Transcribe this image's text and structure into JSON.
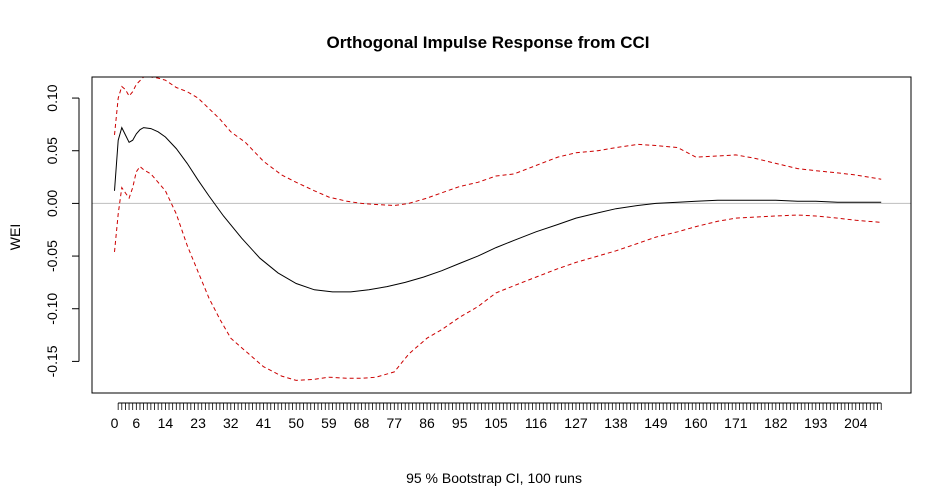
{
  "chart_data": {
    "type": "line",
    "title": "Orthogonal Impulse Response from CCI",
    "xlabel": "95 % Bootstrap CI,  100 runs",
    "ylabel": "WEI",
    "xlim": [
      -6.2,
      219.2
    ],
    "ylim": [
      -0.18,
      0.12
    ],
    "x_tick_labels": [
      "0",
      "6",
      "14",
      "23",
      "32",
      "41",
      "50",
      "59",
      "68",
      "77",
      "86",
      "95",
      "105",
      "116",
      "127",
      "138",
      "149",
      "160",
      "171",
      "182",
      "193",
      "204"
    ],
    "x_tick_values": [
      0,
      6,
      14,
      23,
      32,
      41,
      50,
      59,
      68,
      77,
      86,
      95,
      105,
      116,
      127,
      138,
      149,
      160,
      171,
      182,
      193,
      204
    ],
    "x_minor_ticks": {
      "from": 1,
      "to": 211,
      "step": 1
    },
    "y_ticks": [
      -0.15,
      -0.1,
      -0.05,
      0.0,
      0.05,
      0.1
    ],
    "y_tick_labels": [
      "-0.15",
      "-0.10",
      "-0.05",
      "0.00",
      "0.05",
      "0.10"
    ],
    "zero_line": 0,
    "colors": {
      "response": "#000000",
      "ci": "#cc0000",
      "zero": "#bebebe"
    },
    "series": [
      {
        "role": "response",
        "style": "solid",
        "points": [
          [
            0,
            0.012
          ],
          [
            1,
            0.06
          ],
          [
            2,
            0.072
          ],
          [
            3,
            0.065
          ],
          [
            4,
            0.058
          ],
          [
            5,
            0.06
          ],
          [
            6,
            0.066
          ],
          [
            7,
            0.07
          ],
          [
            8,
            0.072
          ],
          [
            10,
            0.071
          ],
          [
            12,
            0.068
          ],
          [
            14,
            0.063
          ],
          [
            17,
            0.052
          ],
          [
            20,
            0.038
          ],
          [
            23,
            0.022
          ],
          [
            26,
            0.007
          ],
          [
            30,
            -0.012
          ],
          [
            35,
            -0.033
          ],
          [
            40,
            -0.052
          ],
          [
            45,
            -0.066
          ],
          [
            50,
            -0.076
          ],
          [
            55,
            -0.082
          ],
          [
            60,
            -0.084
          ],
          [
            65,
            -0.084
          ],
          [
            70,
            -0.082
          ],
          [
            75,
            -0.079
          ],
          [
            80,
            -0.075
          ],
          [
            85,
            -0.07
          ],
          [
            90,
            -0.064
          ],
          [
            95,
            -0.057
          ],
          [
            100,
            -0.05
          ],
          [
            105,
            -0.042
          ],
          [
            110,
            -0.035
          ],
          [
            116,
            -0.027
          ],
          [
            122,
            -0.02
          ],
          [
            127,
            -0.014
          ],
          [
            133,
            -0.009
          ],
          [
            138,
            -0.005
          ],
          [
            144,
            -0.002
          ],
          [
            149,
            0.0
          ],
          [
            155,
            0.001
          ],
          [
            160,
            0.002
          ],
          [
            166,
            0.003
          ],
          [
            171,
            0.003
          ],
          [
            176,
            0.003
          ],
          [
            182,
            0.003
          ],
          [
            188,
            0.002
          ],
          [
            193,
            0.002
          ],
          [
            199,
            0.001
          ],
          [
            204,
            0.001
          ],
          [
            211,
            0.001
          ]
        ]
      },
      {
        "role": "upper",
        "style": "dashed",
        "points": [
          [
            0,
            0.065
          ],
          [
            1,
            0.1
          ],
          [
            2,
            0.111
          ],
          [
            3,
            0.108
          ],
          [
            4,
            0.102
          ],
          [
            5,
            0.106
          ],
          [
            6,
            0.113
          ],
          [
            8,
            0.12
          ],
          [
            10,
            0.12
          ],
          [
            12,
            0.119
          ],
          [
            14,
            0.117
          ],
          [
            17,
            0.11
          ],
          [
            20,
            0.106
          ],
          [
            23,
            0.1
          ],
          [
            26,
            0.09
          ],
          [
            29,
            0.08
          ],
          [
            32,
            0.068
          ],
          [
            36,
            0.058
          ],
          [
            41,
            0.04
          ],
          [
            46,
            0.027
          ],
          [
            50,
            0.02
          ],
          [
            55,
            0.012
          ],
          [
            59,
            0.006
          ],
          [
            64,
            0.002
          ],
          [
            68,
            0.0
          ],
          [
            72,
            -0.001
          ],
          [
            77,
            -0.002
          ],
          [
            81,
            0.0
          ],
          [
            86,
            0.005
          ],
          [
            90,
            0.01
          ],
          [
            95,
            0.016
          ],
          [
            100,
            0.02
          ],
          [
            105,
            0.026
          ],
          [
            110,
            0.028
          ],
          [
            116,
            0.036
          ],
          [
            122,
            0.044
          ],
          [
            127,
            0.048
          ],
          [
            133,
            0.05
          ],
          [
            138,
            0.053
          ],
          [
            144,
            0.056
          ],
          [
            149,
            0.055
          ],
          [
            155,
            0.053
          ],
          [
            160,
            0.044
          ],
          [
            166,
            0.045
          ],
          [
            171,
            0.046
          ],
          [
            176,
            0.043
          ],
          [
            182,
            0.038
          ],
          [
            188,
            0.033
          ],
          [
            193,
            0.031
          ],
          [
            199,
            0.029
          ],
          [
            204,
            0.027
          ],
          [
            211,
            0.023
          ]
        ]
      },
      {
        "role": "lower",
        "style": "dashed",
        "points": [
          [
            0,
            -0.046
          ],
          [
            1,
            -0.01
          ],
          [
            2,
            0.015
          ],
          [
            3,
            0.01
          ],
          [
            4,
            0.005
          ],
          [
            5,
            0.015
          ],
          [
            6,
            0.03
          ],
          [
            7,
            0.035
          ],
          [
            8,
            0.032
          ],
          [
            10,
            0.028
          ],
          [
            12,
            0.02
          ],
          [
            14,
            0.012
          ],
          [
            17,
            -0.01
          ],
          [
            20,
            -0.04
          ],
          [
            23,
            -0.065
          ],
          [
            26,
            -0.09
          ],
          [
            29,
            -0.11
          ],
          [
            32,
            -0.128
          ],
          [
            36,
            -0.14
          ],
          [
            41,
            -0.155
          ],
          [
            46,
            -0.164
          ],
          [
            50,
            -0.168
          ],
          [
            55,
            -0.167
          ],
          [
            59,
            -0.165
          ],
          [
            64,
            -0.166
          ],
          [
            68,
            -0.166
          ],
          [
            72,
            -0.165
          ],
          [
            77,
            -0.16
          ],
          [
            81,
            -0.143
          ],
          [
            86,
            -0.128
          ],
          [
            90,
            -0.12
          ],
          [
            95,
            -0.108
          ],
          [
            100,
            -0.098
          ],
          [
            105,
            -0.085
          ],
          [
            110,
            -0.078
          ],
          [
            116,
            -0.07
          ],
          [
            122,
            -0.062
          ],
          [
            127,
            -0.056
          ],
          [
            133,
            -0.05
          ],
          [
            138,
            -0.045
          ],
          [
            144,
            -0.038
          ],
          [
            149,
            -0.032
          ],
          [
            155,
            -0.027
          ],
          [
            160,
            -0.022
          ],
          [
            166,
            -0.017
          ],
          [
            171,
            -0.014
          ],
          [
            176,
            -0.013
          ],
          [
            182,
            -0.012
          ],
          [
            188,
            -0.011
          ],
          [
            193,
            -0.012
          ],
          [
            199,
            -0.014
          ],
          [
            204,
            -0.016
          ],
          [
            211,
            -0.018
          ]
        ]
      }
    ]
  }
}
